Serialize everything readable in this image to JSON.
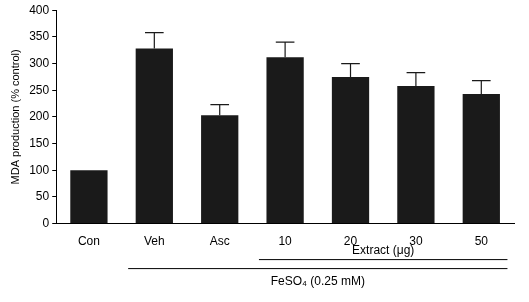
{
  "chart_data": {
    "type": "bar",
    "y_label": "MDA production (% control)",
    "categories": [
      "Con",
      "Veh",
      "Asc",
      "10",
      "20",
      "30",
      "50"
    ],
    "values": [
      100,
      328,
      203,
      312,
      275,
      258,
      243
    ],
    "errors": [
      0,
      30,
      20,
      28,
      25,
      25,
      25
    ],
    "color": "#1a1a1a",
    "ylim": [
      0,
      400
    ],
    "yticks": [
      0,
      50,
      100,
      150,
      200,
      250,
      300,
      350,
      400
    ],
    "grid": false,
    "groups": [
      {
        "label": "Extract (μg)",
        "from": "10",
        "to": "50"
      },
      {
        "label": "FeSO₄ (0.25 mM)",
        "from": "Veh",
        "to": "50"
      }
    ]
  }
}
